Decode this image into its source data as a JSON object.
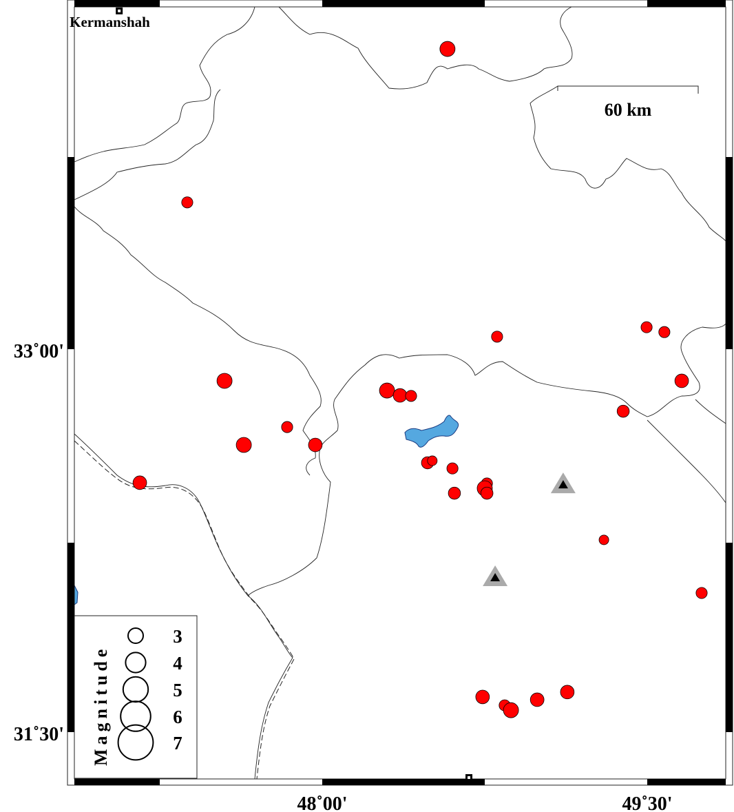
{
  "map": {
    "x_ticks": [
      {
        "lon": 48.0,
        "label": "48˚00'"
      },
      {
        "lon": 49.5,
        "label": "49˚30'"
      }
    ],
    "y_ticks": [
      {
        "lat": 33.0,
        "label": "33˚00'"
      },
      {
        "lat": 31.5,
        "label": "31˚30'"
      }
    ],
    "cities": [
      {
        "name": "Kermanshah",
        "lon": 47.063,
        "lat": 34.325
      },
      {
        "name": "",
        "lon": 48.677,
        "lat": 31.322
      }
    ],
    "scale_bar": {
      "label": "60 km"
    },
    "colors": {
      "event": "#ff0000",
      "lake": "#55a8e0",
      "station_outer": "#aaaaaa",
      "station_inner": "#000000"
    },
    "stations": [
      {
        "lon": 49.112,
        "lat": 32.471
      },
      {
        "lon": 48.798,
        "lat": 32.107
      }
    ],
    "events": [
      {
        "lon": 48.578,
        "lat": 34.176,
        "mag": 3.0
      },
      {
        "lon": 47.377,
        "lat": 33.575,
        "mag": 2.2
      },
      {
        "lon": 48.807,
        "lat": 33.049,
        "mag": 2.2
      },
      {
        "lon": 49.497,
        "lat": 33.086,
        "mag": 2.2
      },
      {
        "lon": 49.579,
        "lat": 33.067,
        "mag": 2.2
      },
      {
        "lon": 49.659,
        "lat": 32.876,
        "mag": 2.7
      },
      {
        "lon": 47.549,
        "lat": 32.876,
        "mag": 3.0
      },
      {
        "lon": 48.299,
        "lat": 32.838,
        "mag": 3.0
      },
      {
        "lon": 48.359,
        "lat": 32.819,
        "mag": 2.7
      },
      {
        "lon": 48.41,
        "lat": 32.817,
        "mag": 2.2
      },
      {
        "lon": 47.838,
        "lat": 32.695,
        "mag": 2.2
      },
      {
        "lon": 47.638,
        "lat": 32.625,
        "mag": 3.0
      },
      {
        "lon": 47.968,
        "lat": 32.625,
        "mag": 2.7
      },
      {
        "lon": 49.389,
        "lat": 32.757,
        "mag": 2.4
      },
      {
        "lon": 47.158,
        "lat": 32.477,
        "mag": 2.7
      },
      {
        "lon": 48.486,
        "lat": 32.555,
        "mag": 2.4
      },
      {
        "lon": 48.508,
        "lat": 32.563,
        "mag": 1.9
      },
      {
        "lon": 48.601,
        "lat": 32.533,
        "mag": 2.2
      },
      {
        "lon": 48.76,
        "lat": 32.474,
        "mag": 2.2
      },
      {
        "lon": 48.75,
        "lat": 32.455,
        "mag": 3.0
      },
      {
        "lon": 48.76,
        "lat": 32.436,
        "mag": 2.4
      },
      {
        "lon": 48.61,
        "lat": 32.436,
        "mag": 2.4
      },
      {
        "lon": 49.3,
        "lat": 32.253,
        "mag": 1.9
      },
      {
        "lon": 49.751,
        "lat": 32.045,
        "mag": 2.2
      },
      {
        "lon": 48.74,
        "lat": 31.638,
        "mag": 2.7
      },
      {
        "lon": 48.842,
        "lat": 31.605,
        "mag": 2.2
      },
      {
        "lon": 48.871,
        "lat": 31.586,
        "mag": 3.0
      },
      {
        "lon": 48.992,
        "lat": 31.627,
        "mag": 2.7
      },
      {
        "lon": 49.131,
        "lat": 31.657,
        "mag": 2.7
      }
    ],
    "legend": {
      "title": "Magnitude",
      "items": [
        {
          "mag": 3,
          "label": "3"
        },
        {
          "mag": 4,
          "label": "4"
        },
        {
          "mag": 5,
          "label": "5"
        },
        {
          "mag": 6,
          "label": "6"
        },
        {
          "mag": 7,
          "label": "7"
        }
      ]
    }
  }
}
